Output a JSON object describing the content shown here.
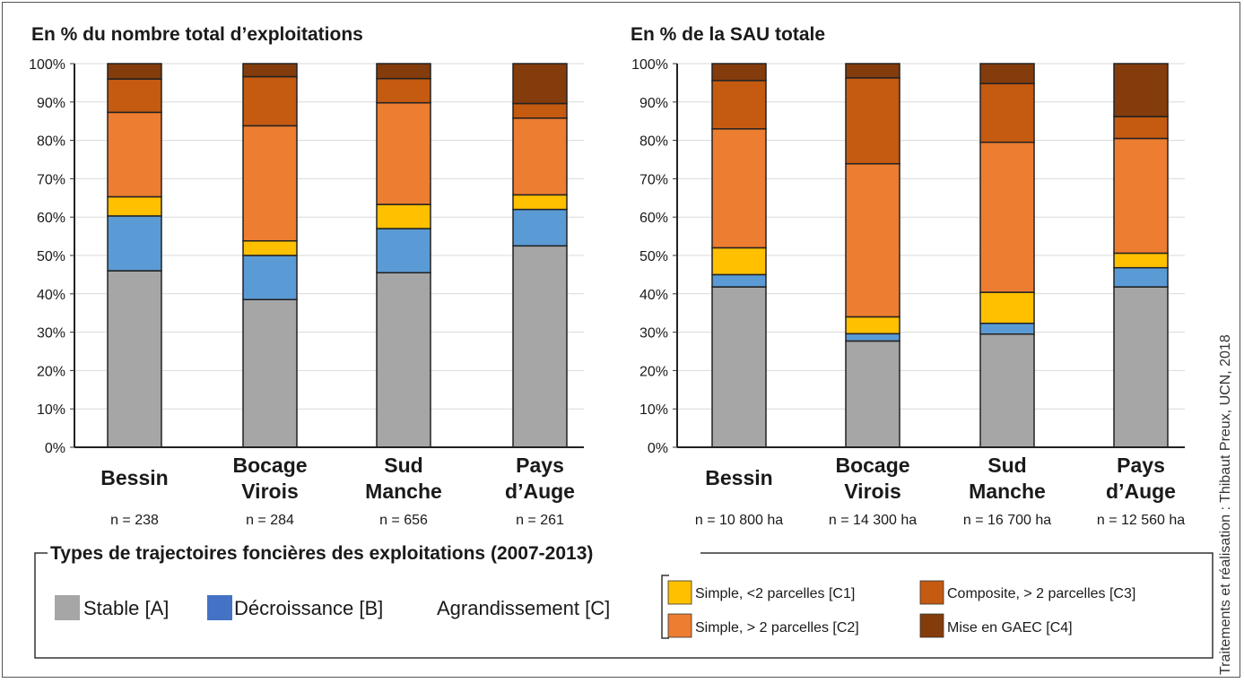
{
  "colors": {
    "A": "#a6a6a6",
    "B": "#5b9bd5",
    "C1": "#ffc000",
    "C2": "#ed7d31",
    "C3": "#c55a11",
    "C4": "#843c0c",
    "legend_B_swatch": "#4472c4"
  },
  "chart_data": [
    {
      "type": "bar",
      "stacked": true,
      "title": "En % du nombre total d’exploitations",
      "categories": [
        [
          "Bessin"
        ],
        [
          "Bocage",
          "Virois"
        ],
        [
          "Sud",
          "Manche"
        ],
        [
          "Pays",
          "d’Auge"
        ]
      ],
      "n_labels": [
        "n = 238",
        "n = 284",
        "n = 656",
        "n = 261"
      ],
      "yticks": [
        "0%",
        "10%",
        "20%",
        "30%",
        "40%",
        "50%",
        "60%",
        "70%",
        "80%",
        "90%",
        "100%"
      ],
      "ylim": [
        0,
        100
      ],
      "grid": true,
      "series": [
        {
          "key": "A",
          "values": [
            46,
            38.5,
            45.5,
            52.5
          ]
        },
        {
          "key": "B",
          "values": [
            14.3,
            11.5,
            11.5,
            9.5
          ]
        },
        {
          "key": "C1",
          "values": [
            5,
            3.8,
            6.3,
            3.8
          ]
        },
        {
          "key": "C2",
          "values": [
            22,
            30,
            26.5,
            20
          ]
        },
        {
          "key": "C3",
          "values": [
            8.7,
            12.8,
            6.3,
            3.8
          ]
        },
        {
          "key": "C4",
          "values": [
            4,
            3.4,
            3.9,
            10.4
          ]
        }
      ]
    },
    {
      "type": "bar",
      "stacked": true,
      "title": "En % de la SAU totale",
      "categories": [
        [
          "Bessin"
        ],
        [
          "Bocage",
          "Virois"
        ],
        [
          "Sud",
          "Manche"
        ],
        [
          "Pays",
          "d’Auge"
        ]
      ],
      "n_labels": [
        "n = 10 800 ha",
        "n = 14 300 ha",
        "n = 16 700 ha",
        "n = 12 560 ha"
      ],
      "yticks": [
        "0%",
        "10%",
        "20%",
        "30%",
        "40%",
        "50%",
        "60%",
        "70%",
        "80%",
        "90%",
        "100%"
      ],
      "ylim": [
        0,
        100
      ],
      "grid": true,
      "series": [
        {
          "key": "A",
          "values": [
            41.8,
            27.7,
            29.5,
            41.8
          ]
        },
        {
          "key": "B",
          "values": [
            3.2,
            1.9,
            2.8,
            5
          ]
        },
        {
          "key": "C1",
          "values": [
            7,
            4.4,
            8.1,
            3.8
          ]
        },
        {
          "key": "C2",
          "values": [
            31,
            39.9,
            39.1,
            29.9
          ]
        },
        {
          "key": "C3",
          "values": [
            12.6,
            22.4,
            15.3,
            5.7
          ]
        },
        {
          "key": "C4",
          "values": [
            4.4,
            3.7,
            5.2,
            13.8
          ]
        }
      ]
    }
  ],
  "legend": {
    "title": "Types de trajectoires foncières des exploitations (2007-2013)",
    "A": "Stable [A]",
    "B": "Décroissance [B]",
    "C": "Agrandissement [C]",
    "C1": "Simple, <2 parcelles [C1]",
    "C2": "Simple, > 2 parcelles [C2]",
    "C3": "Composite, > 2 parcelles [C3]",
    "C4": "Mise en GAEC [C4]"
  },
  "credit": "Traitements et réalisation : Thibaut Preux, UCN, 2018"
}
